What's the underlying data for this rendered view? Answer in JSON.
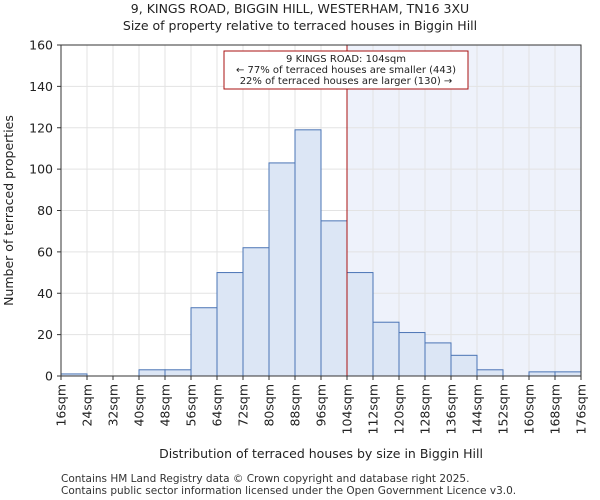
{
  "header": {
    "title": "9, KINGS ROAD, BIGGIN HILL, WESTERHAM, TN16 3XU",
    "subtitle": "Size of property relative to terraced houses in Biggin Hill"
  },
  "chart_data": {
    "type": "bar",
    "title": "Size of property relative to terraced houses in Biggin Hill",
    "xlabel": "Distribution of terraced houses by size in Biggin Hill",
    "ylabel": "Number of terraced properties",
    "ylim": [
      0,
      160
    ],
    "yticks": [
      0,
      20,
      40,
      60,
      80,
      100,
      120,
      140,
      160
    ],
    "tick_labels": [
      "16sqm",
      "24sqm",
      "32sqm",
      "40sqm",
      "48sqm",
      "56sqm",
      "64sqm",
      "72sqm",
      "80sqm",
      "88sqm",
      "96sqm",
      "104sqm",
      "112sqm",
      "120sqm",
      "128sqm",
      "136sqm",
      "144sqm",
      "152sqm",
      "160sqm",
      "168sqm",
      "176sqm"
    ],
    "bin_edges": [
      16,
      24,
      32,
      40,
      48,
      56,
      64,
      72,
      80,
      88,
      96,
      104,
      112,
      120,
      128,
      136,
      144,
      152,
      160,
      168,
      176
    ],
    "values": [
      1,
      0,
      0,
      3,
      3,
      33,
      50,
      62,
      103,
      119,
      75,
      50,
      26,
      21,
      16,
      10,
      3,
      0,
      2,
      2
    ],
    "property_size": 104,
    "annotation": {
      "line1": "9 KINGS ROAD: 104sqm",
      "line2": "← 77% of terraced houses are smaller (443)",
      "line3": "22% of terraced houses are larger (130) →"
    },
    "colors": {
      "bar_fill": "#dce6f5",
      "bar_edge": "#4a74b5",
      "marker": "#aa1111",
      "shade": "#eef2fb"
    }
  },
  "footer": {
    "line1": "Contains HM Land Registry data © Crown copyright and database right 2025.",
    "line2": "Contains public sector information licensed under the Open Government Licence v3.0."
  }
}
